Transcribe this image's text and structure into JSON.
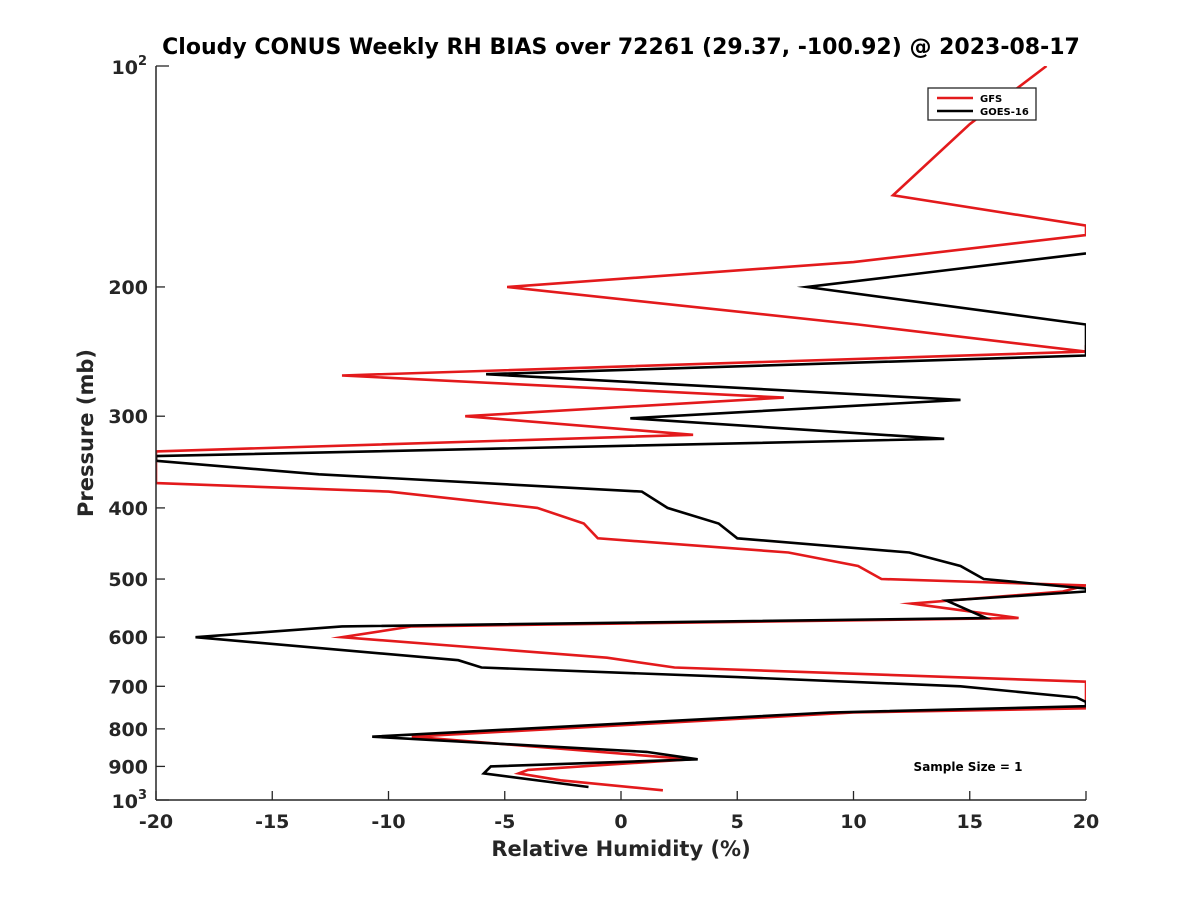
{
  "chart_data": {
    "type": "line",
    "title": "Cloudy CONUS Weekly RH BIAS over 72261 (29.37, -100.92) @ 2023-08-17",
    "xlabel": "Relative Humidity (%)",
    "ylabel": "Pressure (mb)",
    "xlim": [
      -20,
      20
    ],
    "ylim": [
      100,
      1000
    ],
    "yscale": "log",
    "y_reversed": true,
    "grid": false,
    "legend_position": "top-right",
    "x_ticks": [
      -20,
      -15,
      -10,
      -5,
      0,
      5,
      10,
      15,
      20
    ],
    "x_tick_labels": [
      "-20",
      "-15",
      "-10",
      "-5",
      "0",
      "5",
      "10",
      "15",
      "20"
    ],
    "y_ticks": [
      200,
      300,
      400,
      500,
      600,
      700,
      800,
      900
    ],
    "y_tick_labels": [
      "200",
      "300",
      "400",
      "500",
      "600",
      "700",
      "800",
      "900"
    ],
    "y_decade_labels": [
      {
        "value": 100,
        "base": "10",
        "exp": "2"
      },
      {
        "value": 1000,
        "base": "10",
        "exp": "3"
      }
    ],
    "annotation": "Sample Size = 1",
    "series": [
      {
        "name": "GFS",
        "color": "#e31a1c",
        "x": [
          18.3,
          15.0,
          11.7,
          20.0,
          20.0,
          20.0,
          10.0,
          -4.9,
          10.2,
          20.0,
          20.0,
          20.0,
          -12.0,
          7.0,
          -6.7,
          3.1,
          -20.0,
          -20.0,
          -20.0,
          -10.0,
          -3.6,
          -1.6,
          -1.0,
          7.2,
          10.2,
          11.2,
          20.0,
          19.0,
          12.5,
          17.1,
          -9.0,
          -12.0,
          -0.6,
          2.3,
          20.0,
          20.0,
          10.0,
          -9.0,
          3.0,
          -4.0,
          -4.4,
          -2.6,
          1.8
        ],
        "y": [
          100,
          120,
          150,
          165,
          165,
          170,
          185,
          200,
          225,
          245,
          240,
          245,
          264,
          283,
          300,
          318,
          335,
          340,
          370,
          380,
          400,
          420,
          440,
          460,
          480,
          500,
          510,
          520,
          540,
          565,
          580,
          600,
          640,
          660,
          690,
          750,
          760,
          820,
          880,
          910,
          920,
          940,
          970
        ]
      },
      {
        "name": "GOES-16",
        "color": "#000000",
        "x": [
          20.0,
          8.0,
          20.0,
          20.0,
          20.0,
          -5.8,
          14.6,
          0.4,
          13.9,
          -20.0,
          -20.0,
          -13.0,
          0.9,
          2.0,
          4.2,
          5.0,
          12.4,
          14.6,
          15.6,
          20.0,
          20.0,
          14.0,
          15.7,
          -12.0,
          -18.3,
          -7.0,
          -6.0,
          5.0,
          14.6,
          19.6,
          20.0,
          20.0,
          9.0,
          -10.7,
          1.1,
          3.3,
          -5.6,
          -5.9,
          -1.4
        ],
        "y": [
          180,
          200,
          225,
          240,
          248,
          263,
          285,
          302,
          322,
          340,
          345,
          360,
          380,
          400,
          420,
          440,
          460,
          480,
          500,
          515,
          520,
          535,
          565,
          580,
          600,
          645,
          660,
          680,
          700,
          725,
          735,
          745,
          760,
          820,
          860,
          880,
          900,
          920,
          960
        ]
      }
    ]
  }
}
